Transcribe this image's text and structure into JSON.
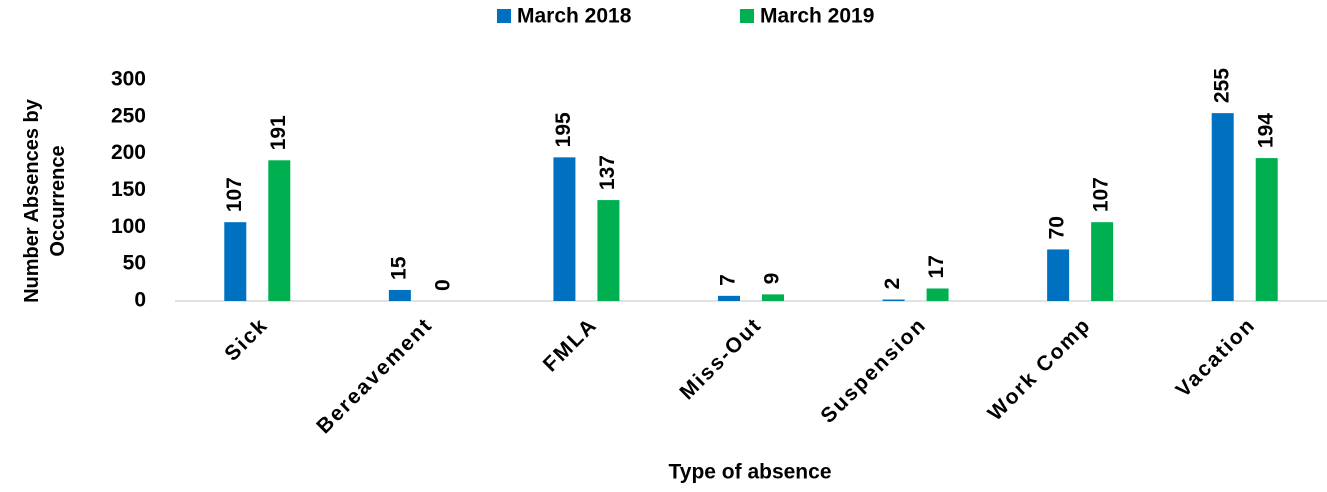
{
  "chart_data": {
    "type": "bar",
    "x_label": "Type of absence",
    "y_label": "Number Absences by Occurrence",
    "categories": [
      "Sick",
      "Bereavement",
      "FMLA",
      "Miss-Out",
      "Suspension",
      "Work Comp",
      "Vacation"
    ],
    "series": [
      {
        "name": "March 2018",
        "color": "#0070c0",
        "values": [
          107,
          15,
          195,
          7,
          2,
          70,
          255
        ]
      },
      {
        "name": "March 2019",
        "color": "#00b050",
        "values": [
          191,
          0,
          137,
          9,
          17,
          107,
          194
        ]
      }
    ],
    "ylim": [
      0,
      300
    ],
    "yticks": [
      0,
      50,
      100,
      150,
      200,
      250,
      300
    ],
    "grid": false,
    "legend": "top"
  }
}
